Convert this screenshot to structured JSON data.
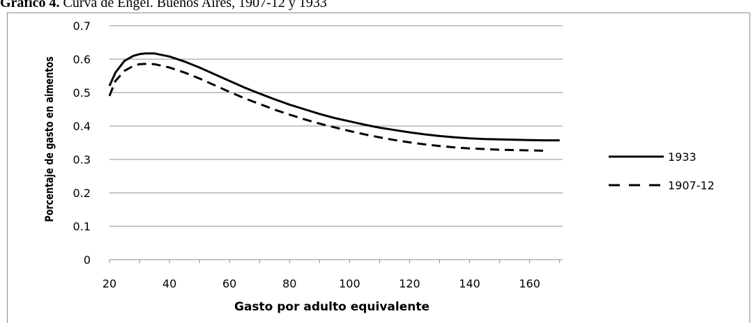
{
  "caption": {
    "label": "Gráfico 4.",
    "text": " Curva de Engel. Buenos Aires, 1907-12 y 1933"
  },
  "chart_data": {
    "type": "line",
    "title": "",
    "xlabel": "Gasto por adulto equivalente",
    "ylabel": "Porcentaje de gasto en aimentos",
    "xlim": [
      20,
      171
    ],
    "ylim": [
      0,
      0.7
    ],
    "x_ticks": [
      20,
      40,
      60,
      80,
      100,
      120,
      140,
      160
    ],
    "x_tick_labels": [
      "20",
      "40",
      "60",
      "80",
      "100",
      "120",
      "140",
      "160"
    ],
    "x_minor_step": 10,
    "y_ticks": [
      0,
      0.1,
      0.2,
      0.3,
      0.4,
      0.5,
      0.6,
      0.7
    ],
    "y_tick_labels": [
      "0",
      "0.1",
      "0.2",
      "0.3",
      "0.4",
      "0.5",
      "0.6",
      "0.7"
    ],
    "grid": true,
    "legend_position": "right",
    "series": [
      {
        "name": "1933",
        "style": "solid",
        "color": "#000000",
        "x": [
          20,
          22,
          25,
          28,
          30,
          32,
          35,
          40,
          45,
          50,
          55,
          60,
          65,
          70,
          75,
          80,
          85,
          90,
          95,
          100,
          105,
          110,
          115,
          120,
          125,
          130,
          135,
          140,
          145,
          150,
          155,
          160,
          165,
          170
        ],
        "y": [
          0.52,
          0.56,
          0.595,
          0.61,
          0.615,
          0.617,
          0.617,
          0.608,
          0.593,
          0.575,
          0.555,
          0.535,
          0.515,
          0.497,
          0.48,
          0.464,
          0.45,
          0.436,
          0.424,
          0.414,
          0.404,
          0.395,
          0.388,
          0.381,
          0.375,
          0.37,
          0.366,
          0.363,
          0.361,
          0.36,
          0.359,
          0.358,
          0.357,
          0.357
        ]
      },
      {
        "name": "1907-12",
        "style": "dashed",
        "color": "#000000",
        "x": [
          20,
          22,
          25,
          28,
          30,
          32,
          35,
          40,
          45,
          50,
          55,
          60,
          65,
          70,
          75,
          80,
          85,
          90,
          95,
          100,
          105,
          110,
          115,
          120,
          125,
          130,
          135,
          140,
          145,
          150,
          155,
          160,
          165
        ],
        "y": [
          0.49,
          0.535,
          0.565,
          0.58,
          0.585,
          0.586,
          0.585,
          0.575,
          0.56,
          0.542,
          0.522,
          0.502,
          0.483,
          0.466,
          0.449,
          0.434,
          0.42,
          0.407,
          0.396,
          0.385,
          0.375,
          0.366,
          0.358,
          0.351,
          0.345,
          0.34,
          0.336,
          0.333,
          0.331,
          0.329,
          0.328,
          0.327,
          0.326
        ]
      }
    ]
  }
}
